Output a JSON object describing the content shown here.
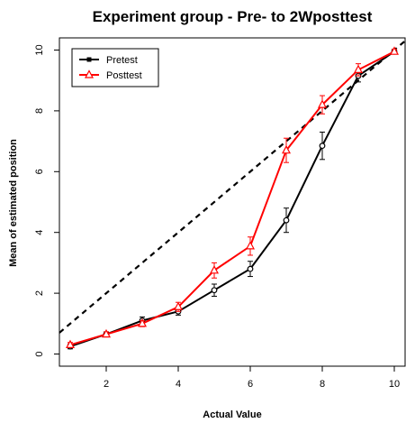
{
  "chart_data": {
    "type": "line",
    "title": "Experiment group - Pre- to 2Wposttest",
    "xlabel": "Actual Value",
    "ylabel": "Mean of estimated position",
    "xlim": [
      0.7,
      10.3
    ],
    "ylim": [
      -0.4,
      10.4
    ],
    "x_ticks": [
      2,
      4,
      6,
      8,
      10
    ],
    "y_ticks": [
      0,
      2,
      4,
      6,
      8,
      10
    ],
    "legend_position": "top-left",
    "grid": false,
    "x": [
      1,
      2,
      3,
      4,
      5,
      6,
      7,
      8,
      9,
      10
    ],
    "series": [
      {
        "name": "Pretest",
        "color": "#000000",
        "marker": "circle",
        "values": [
          0.25,
          0.65,
          1.1,
          1.4,
          2.1,
          2.8,
          4.4,
          6.85,
          9.15,
          9.95
        ],
        "error": [
          0.08,
          0.08,
          0.12,
          0.12,
          0.2,
          0.25,
          0.4,
          0.45,
          0.2,
          0.08
        ]
      },
      {
        "name": "Posttest",
        "color": "#ff0000",
        "marker": "triangle",
        "values": [
          0.3,
          0.65,
          1.0,
          1.55,
          2.75,
          3.55,
          6.7,
          8.2,
          9.35,
          9.95
        ],
        "error": [
          0.08,
          0.08,
          0.1,
          0.15,
          0.25,
          0.3,
          0.4,
          0.3,
          0.2,
          0.08
        ]
      }
    ],
    "reference_line": {
      "from": [
        0.7,
        0.7
      ],
      "to": [
        10.3,
        10.3
      ],
      "style": "dashed",
      "color": "#000000"
    }
  }
}
